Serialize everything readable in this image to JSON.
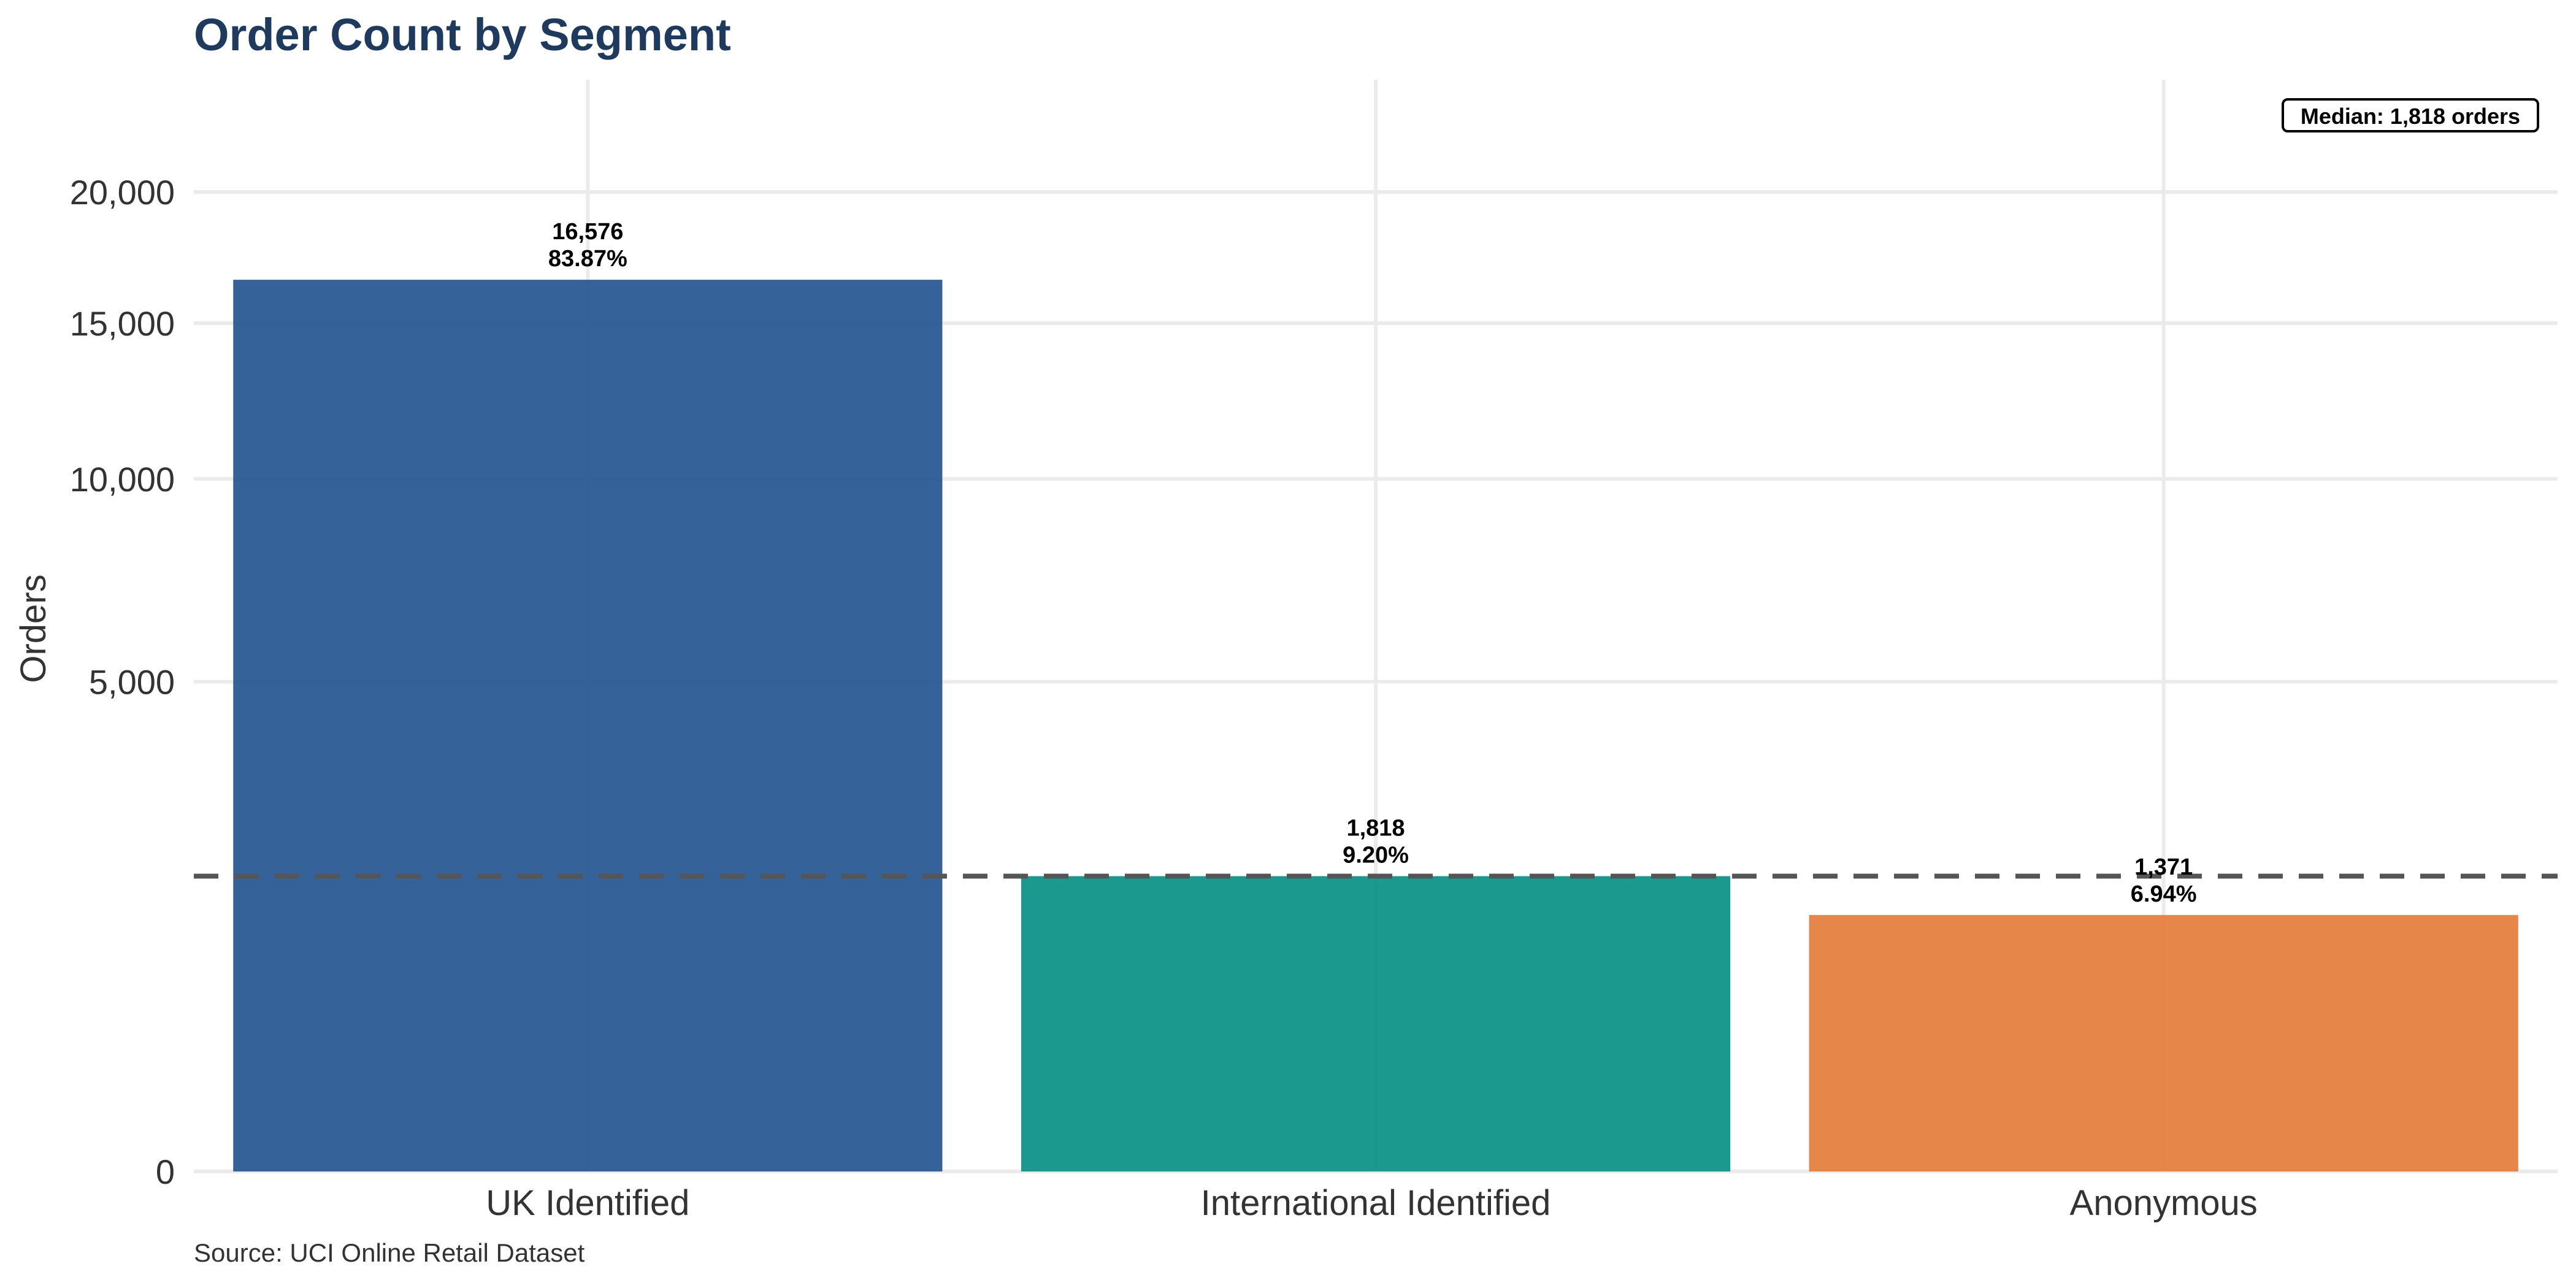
{
  "chart_data": {
    "type": "bar",
    "title": "Order Count by Segment",
    "xlabel": "",
    "ylabel": "Orders",
    "categories": [
      "UK Identified",
      "International Identified",
      "Anonymous"
    ],
    "values": [
      16576,
      1818,
      1371
    ],
    "value_labels": [
      "16,576",
      "1,818",
      "1,371"
    ],
    "percent_labels": [
      "83.87%",
      "9.20%",
      "6.94%"
    ],
    "colors": [
      "#2a5a94",
      "#0f9488",
      "#e5803f"
    ],
    "y_scale": "sqrt",
    "yticks": [
      0,
      5000,
      10000,
      15000,
      20000
    ],
    "ytick_labels": [
      "0",
      "5,000",
      "10,000",
      "15,000",
      "20,000"
    ],
    "ylim": [
      0,
      23000
    ],
    "reference_line": {
      "value": 1818,
      "style": "dashed",
      "color": "#555555",
      "label": "Median: 1,818 orders"
    },
    "grid": true,
    "source": "Source: UCI Online Retail Dataset"
  }
}
